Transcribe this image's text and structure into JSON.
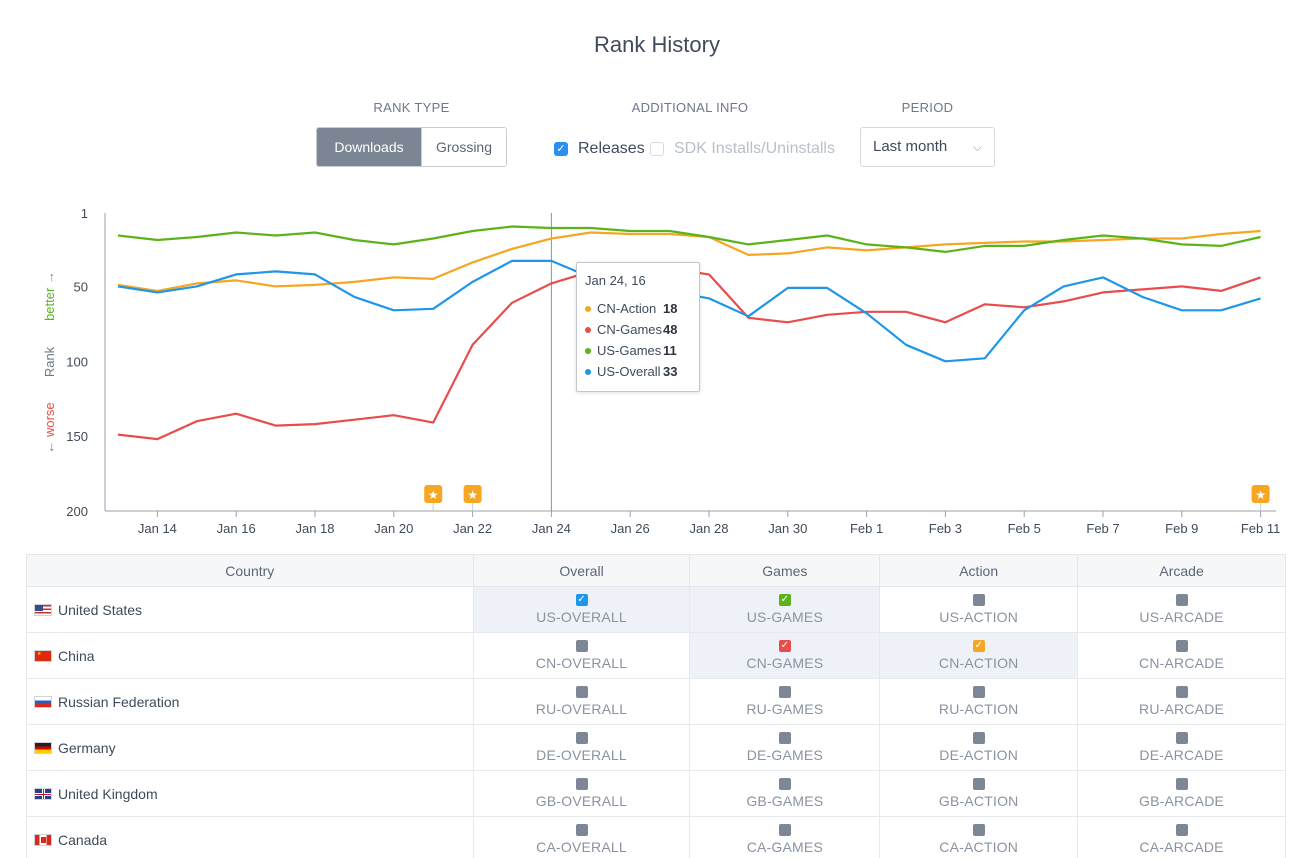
{
  "title": "Rank History",
  "controls": {
    "rank_type_label": "RANK TYPE",
    "rank_type_options": [
      "Downloads",
      "Grossing"
    ],
    "rank_type_selected": "Downloads",
    "additional_info_label": "ADDITIONAL INFO",
    "releases_label": "Releases",
    "releases_checked": true,
    "sdk_label": "SDK Installs/Uninstalls",
    "sdk_checked": false,
    "period_label": "PERIOD",
    "period_value": "Last month"
  },
  "chart_data": {
    "type": "line",
    "ylabel": "Rank",
    "y_better_label": "better →",
    "y_worse_label": "← worse",
    "ylim": [
      1,
      200
    ],
    "y_inverted": true,
    "yticks": [
      1,
      50,
      100,
      150,
      200
    ],
    "x_tick_labels": [
      "Jan 14",
      "Jan 16",
      "Jan 18",
      "Jan 20",
      "Jan 22",
      "Jan 24",
      "Jan 26",
      "Jan 28",
      "Jan 30",
      "Feb 1",
      "Feb 3",
      "Feb 5",
      "Feb 7",
      "Feb 9",
      "Feb 11"
    ],
    "x": [
      "Jan 13",
      "Jan 14",
      "Jan 15",
      "Jan 16",
      "Jan 17",
      "Jan 18",
      "Jan 19",
      "Jan 20",
      "Jan 21",
      "Jan 22",
      "Jan 23",
      "Jan 24",
      "Jan 25",
      "Jan 26",
      "Jan 27",
      "Jan 28",
      "Jan 29",
      "Jan 30",
      "Jan 31",
      "Feb 1",
      "Feb 2",
      "Feb 3",
      "Feb 4",
      "Feb 5",
      "Feb 6",
      "Feb 7",
      "Feb 8",
      "Feb 9",
      "Feb 10",
      "Feb 11"
    ],
    "series": [
      {
        "name": "CN-Action",
        "color": "#f5a623",
        "values": [
          49,
          53,
          48,
          46,
          50,
          49,
          47,
          44,
          45,
          34,
          25,
          18,
          14,
          15,
          15,
          17,
          29,
          28,
          24,
          26,
          24,
          22,
          21,
          20,
          20,
          19,
          18,
          18,
          15,
          13
        ]
      },
      {
        "name": "CN-Games",
        "color": "#e84c4c",
        "values": [
          149,
          152,
          140,
          135,
          143,
          142,
          139,
          136,
          141,
          89,
          61,
          48,
          40,
          39,
          38,
          42,
          71,
          74,
          69,
          67,
          67,
          74,
          62,
          64,
          60,
          54,
          52,
          50,
          53,
          44
        ]
      },
      {
        "name": "US-Games",
        "color": "#5bb319",
        "values": [
          16,
          19,
          17,
          14,
          16,
          14,
          19,
          22,
          18,
          13,
          10,
          11,
          11,
          13,
          13,
          17,
          22,
          19,
          16,
          22,
          24,
          27,
          23,
          23,
          19,
          16,
          18,
          22,
          23,
          17
        ]
      },
      {
        "name": "US-Overall",
        "color": "#1f96e8",
        "values": [
          50,
          54,
          50,
          42,
          40,
          42,
          57,
          66,
          65,
          47,
          33,
          33,
          44,
          50,
          53,
          58,
          70,
          51,
          51,
          68,
          89,
          100,
          98,
          66,
          50,
          44,
          57,
          66,
          66,
          58
        ]
      }
    ],
    "release_markers": [
      "Jan 21",
      "Jan 22",
      "Feb 11"
    ],
    "hover_x": "Jan 24",
    "tooltip": {
      "date": "Jan 24, 16",
      "rows": [
        {
          "name": "CN-Action",
          "value": "18",
          "color": "#f5a623"
        },
        {
          "name": "CN-Games",
          "value": "48",
          "color": "#e84c4c"
        },
        {
          "name": "US-Games",
          "value": "11",
          "color": "#5bb319"
        },
        {
          "name": "US-Overall",
          "value": "33",
          "color": "#1f96e8"
        }
      ]
    }
  },
  "table": {
    "headers": [
      "Country",
      "Overall",
      "Games",
      "Action",
      "Arcade"
    ],
    "rows": [
      {
        "country": "United States",
        "flag": "us",
        "cells": [
          {
            "label": "US-OVERALL",
            "checked": true,
            "color": "#1f96e8"
          },
          {
            "label": "US-GAMES",
            "checked": true,
            "color": "#5bb319"
          },
          {
            "label": "US-ACTION",
            "checked": false
          },
          {
            "label": "US-ARCADE",
            "checked": false
          }
        ]
      },
      {
        "country": "China",
        "flag": "cn",
        "cells": [
          {
            "label": "CN-OVERALL",
            "checked": false
          },
          {
            "label": "CN-GAMES",
            "checked": true,
            "color": "#e84c4c"
          },
          {
            "label": "CN-ACTION",
            "checked": true,
            "color": "#f5a623"
          },
          {
            "label": "CN-ARCADE",
            "checked": false
          }
        ]
      },
      {
        "country": "Russian Federation",
        "flag": "ru",
        "cells": [
          {
            "label": "RU-OVERALL",
            "checked": false
          },
          {
            "label": "RU-GAMES",
            "checked": false
          },
          {
            "label": "RU-ACTION",
            "checked": false
          },
          {
            "label": "RU-ARCADE",
            "checked": false
          }
        ]
      },
      {
        "country": "Germany",
        "flag": "de",
        "cells": [
          {
            "label": "DE-OVERALL",
            "checked": false
          },
          {
            "label": "DE-GAMES",
            "checked": false
          },
          {
            "label": "DE-ACTION",
            "checked": false
          },
          {
            "label": "DE-ARCADE",
            "checked": false
          }
        ]
      },
      {
        "country": "United Kingdom",
        "flag": "gb",
        "cells": [
          {
            "label": "GB-OVERALL",
            "checked": false
          },
          {
            "label": "GB-GAMES",
            "checked": false
          },
          {
            "label": "GB-ACTION",
            "checked": false
          },
          {
            "label": "GB-ARCADE",
            "checked": false
          }
        ]
      },
      {
        "country": "Canada",
        "flag": "ca",
        "cells": [
          {
            "label": "CA-OVERALL",
            "checked": false
          },
          {
            "label": "CA-GAMES",
            "checked": false
          },
          {
            "label": "CA-ACTION",
            "checked": false
          },
          {
            "label": "CA-ARCADE",
            "checked": false
          }
        ]
      }
    ]
  }
}
